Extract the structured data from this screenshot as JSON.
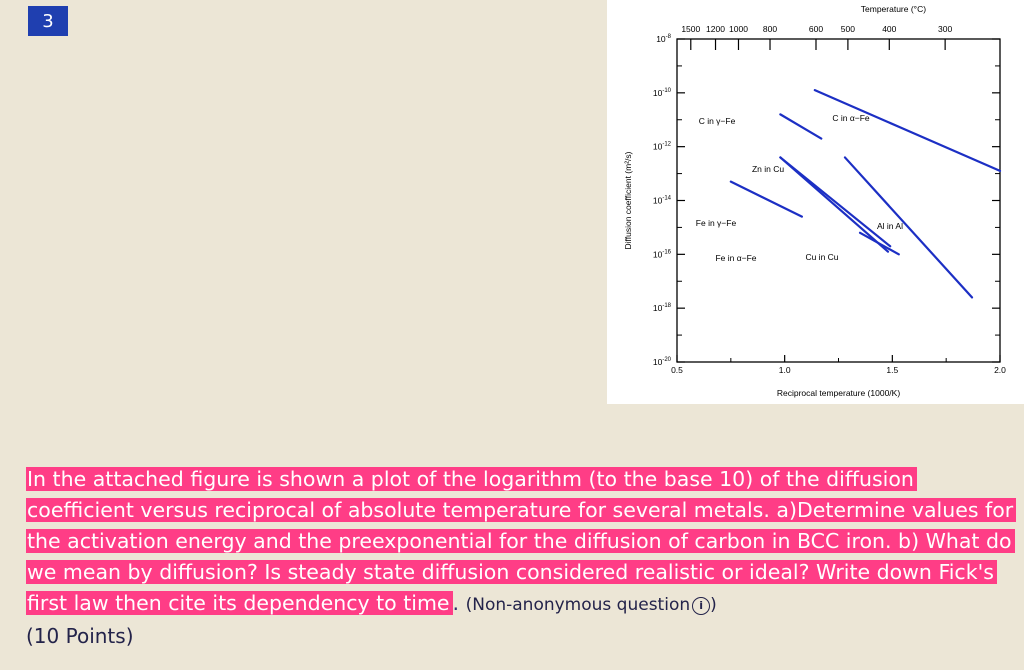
{
  "question_number": "3",
  "question": {
    "text_highlighted": "In the attached figure is shown a plot of the logarithm (to the base 10) of the diffusion coefficient versus reciprocal of absolute temperature for several metals. a)Determine values for the activation energy and the preexponential for the diffusion of carbon in BCC iron. b) What do we mean by diffusion? Is steady state diffusion considered realistic or ideal? Write down Fick's first law then cite its dependency to time",
    "text_tail": ".",
    "meta_label": "(Non-anonymous question",
    "meta_close": ")",
    "info_icon": "info-circle-icon",
    "points": "(10 Points)"
  },
  "colors": {
    "highlight": "#ff3d86",
    "badge": "#1f3fb0",
    "line": "#1c2fc4",
    "background": "#ece6d6"
  },
  "chart_data": {
    "type": "line",
    "x_scale": "linear",
    "y_scale": "log",
    "xlabel": "Reciprocal temperature (1000/K)",
    "ylabel": "Diffusion coefficient (m²/s)",
    "top_axis_label": "Temperature (°C)",
    "xlim": [
      0.5,
      2.0
    ],
    "ylim_exponent": [
      -20,
      -8
    ],
    "x_ticks": [
      "0.5",
      "1.0",
      "1.5",
      "2.0"
    ],
    "y_ticks": [
      {
        "base": "10",
        "exp": "-8",
        "value": -8
      },
      {
        "base": "10",
        "exp": "-10",
        "value": -10
      },
      {
        "base": "10",
        "exp": "-12",
        "value": -12
      },
      {
        "base": "10",
        "exp": "-14",
        "value": -14
      },
      {
        "base": "10",
        "exp": "-16",
        "value": -16
      },
      {
        "base": "10",
        "exp": "-18",
        "value": -18
      },
      {
        "base": "10",
        "exp": "-20",
        "value": -20
      }
    ],
    "top_ticks": [
      {
        "label": "1500",
        "celsius": 1500
      },
      {
        "label": "1200",
        "celsius": 1200
      },
      {
        "label": "1000",
        "celsius": 1000
      },
      {
        "label": "800",
        "celsius": 800
      },
      {
        "label": "600",
        "celsius": 600
      },
      {
        "label": "500",
        "celsius": 500
      },
      {
        "label": "400",
        "celsius": 400
      },
      {
        "label": "300",
        "celsius": 300
      }
    ],
    "series": [
      {
        "name": "C in γ−Fe",
        "x": [
          0.98,
          1.17
        ],
        "log_y": [
          -10.8,
          -11.7
        ]
      },
      {
        "name": "C in α−Fe",
        "x": [
          1.14,
          2.0
        ],
        "log_y": [
          -9.9,
          -12.9
        ]
      },
      {
        "name": "Zn in Cu",
        "x": [
          0.98,
          1.49
        ],
        "log_y": [
          -12.4,
          -15.7
        ]
      },
      {
        "name": "Fe in γ−Fe",
        "x": [
          0.75,
          1.08
        ],
        "log_y": [
          -13.3,
          -14.6
        ]
      },
      {
        "name": "Fe in α−Fe",
        "x": [
          1.35,
          1.53
        ],
        "log_y": [
          -15.2,
          -16.0
        ]
      },
      {
        "name": "Cu in Cu",
        "x": [
          0.98,
          1.48
        ],
        "log_y": [
          -12.4,
          -15.9
        ]
      },
      {
        "name": "Al in Al",
        "x": [
          1.28,
          1.87
        ],
        "log_y": [
          -12.4,
          -17.6
        ]
      }
    ],
    "series_labels": [
      {
        "text": "C in γ−Fe"
      },
      {
        "text": "C in α−Fe"
      },
      {
        "text": "Zn in Cu"
      },
      {
        "text": "Fe in γ−Fe"
      },
      {
        "text": "Fe in α−Fe"
      },
      {
        "text": "Cu in Cu"
      },
      {
        "text": "Al in Al"
      }
    ],
    "grid": false
  }
}
